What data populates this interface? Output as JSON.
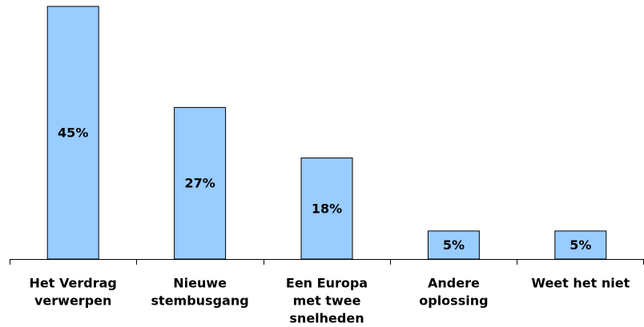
{
  "chart_data": {
    "type": "bar",
    "categories": [
      [
        "Het Verdrag",
        "verwerpen"
      ],
      [
        "Nieuwe",
        "stembusgang"
      ],
      [
        "Een Europa",
        "met twee",
        "snelheden"
      ],
      [
        "Andere",
        "oplossing"
      ],
      [
        "Weet het niet"
      ]
    ],
    "values": [
      45,
      27,
      18,
      5,
      5
    ],
    "value_labels": [
      "45%",
      "27%",
      "18%",
      "5%",
      "5%"
    ],
    "color": "#99ccff"
  }
}
